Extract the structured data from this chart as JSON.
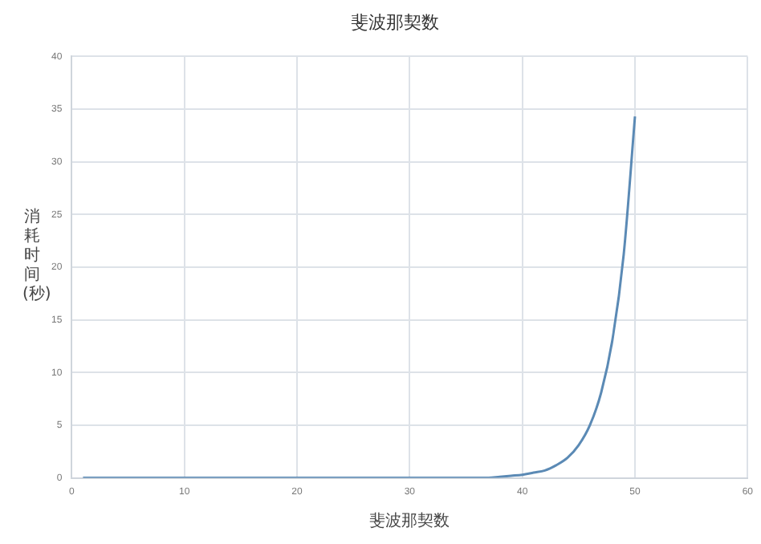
{
  "chart_data": {
    "type": "line",
    "title": "斐波那契数",
    "xlabel": "斐波那契数",
    "ylabel": "消耗时间(秒)",
    "x": [
      1,
      10,
      20,
      30,
      35,
      37,
      38,
      39,
      40,
      41,
      42,
      43,
      44,
      45,
      46,
      47,
      48,
      49,
      50
    ],
    "series": [
      {
        "color": "#5b8ab5",
        "values": [
          0,
          0,
          0,
          0,
          0,
          0,
          0.1,
          0.2,
          0.3,
          0.5,
          0.7,
          1.2,
          1.9,
          3.1,
          5.0,
          8.1,
          13.1,
          21.2,
          34.3
        ]
      }
    ],
    "xlim": [
      0,
      60
    ],
    "xticks": [
      0,
      10,
      20,
      30,
      40,
      50,
      60
    ],
    "ylim": [
      0,
      40
    ],
    "yticks": [
      0,
      5,
      10,
      15,
      20,
      25,
      30,
      35,
      40
    ],
    "grid": true,
    "legend": false,
    "marker": "none",
    "line_style": "solid"
  }
}
